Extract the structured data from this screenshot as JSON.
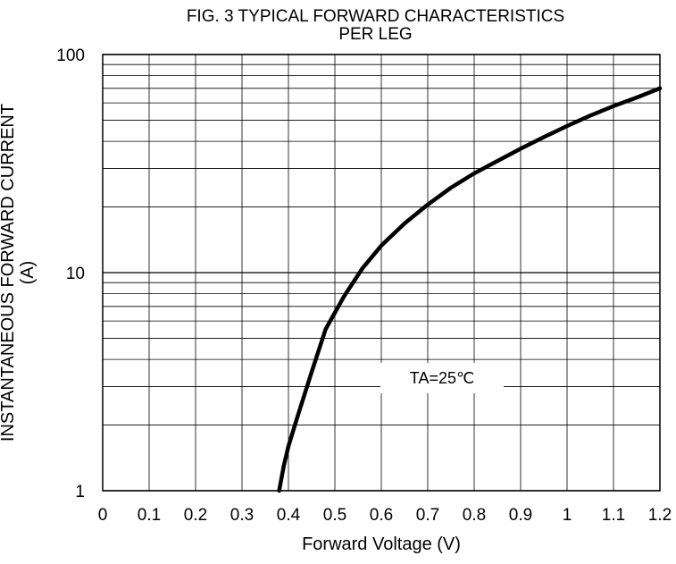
{
  "chart_data": {
    "type": "line",
    "title": "FIG. 3 TYPICAL FORWARD CHARACTERISTICS",
    "subtitle": "PER LEG",
    "xlabel": "Forward Voltage (V)",
    "ylabel": "INSTANTANEOUS FORWARD CURRENT",
    "ylabel_unit": "(A)",
    "xlim": [
      0,
      1.2
    ],
    "ylim": [
      1,
      100
    ],
    "yscale": "log",
    "grid": true,
    "xticks": [
      "0",
      "0.1",
      "0.2",
      "0.3",
      "0.4",
      "0.5",
      "0.6",
      "0.7",
      "0.8",
      "0.9",
      "1",
      "1.1",
      "1.2"
    ],
    "yticks": [
      "1",
      "10",
      "100"
    ],
    "annotation": "TA=25℃",
    "series": [
      {
        "x": [
          0.38,
          0.39,
          0.4,
          0.42,
          0.45,
          0.48,
          0.52,
          0.56,
          0.6,
          0.65,
          0.7,
          0.75,
          0.8,
          0.85,
          0.9,
          0.95,
          1.0,
          1.05,
          1.1,
          1.15,
          1.2
        ],
        "y": [
          1.0,
          1.3,
          1.6,
          2.2,
          3.5,
          5.5,
          7.8,
          10.5,
          13.3,
          16.8,
          20.5,
          24.5,
          28.5,
          32.5,
          37.0,
          41.8,
          47.0,
          52.5,
          58.0,
          63.5,
          70.0
        ]
      }
    ]
  }
}
